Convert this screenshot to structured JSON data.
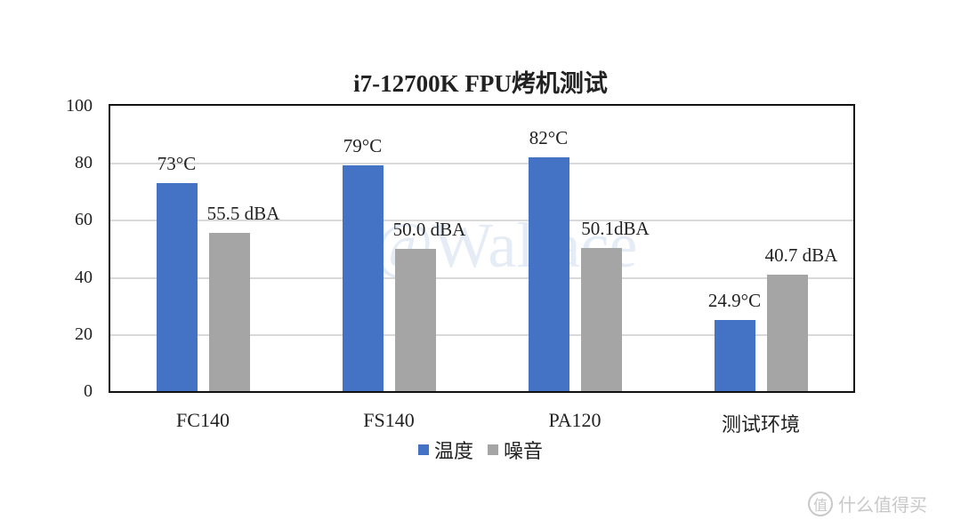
{
  "chart_data": {
    "type": "bar",
    "title": "i7-12700K FPU烤机测试",
    "categories": [
      "FC140",
      "FS140",
      "PA120",
      "测试环境"
    ],
    "series": [
      {
        "name": "温度",
        "color": "#4472c4",
        "values": [
          73,
          79,
          82,
          24.9
        ],
        "labels": [
          "73°C",
          "79°C",
          "82°C",
          "24.9°C"
        ]
      },
      {
        "name": "噪音",
        "color": "#a5a5a5",
        "values": [
          55.5,
          50.0,
          50.1,
          40.7
        ],
        "labels": [
          "55.5 dBA",
          "50.0 dBA",
          "50.1dBA",
          "40.7 dBA"
        ]
      }
    ],
    "xlabel": "",
    "ylabel": "",
    "ylim": [
      0,
      100
    ],
    "yticks": [
      "0",
      "20",
      "40",
      "60",
      "80",
      "100"
    ],
    "grid": true,
    "legend_position": "bottom"
  },
  "watermark": {
    "badge": "值",
    "text": "什么值得买",
    "overlay": "@Wallace"
  }
}
